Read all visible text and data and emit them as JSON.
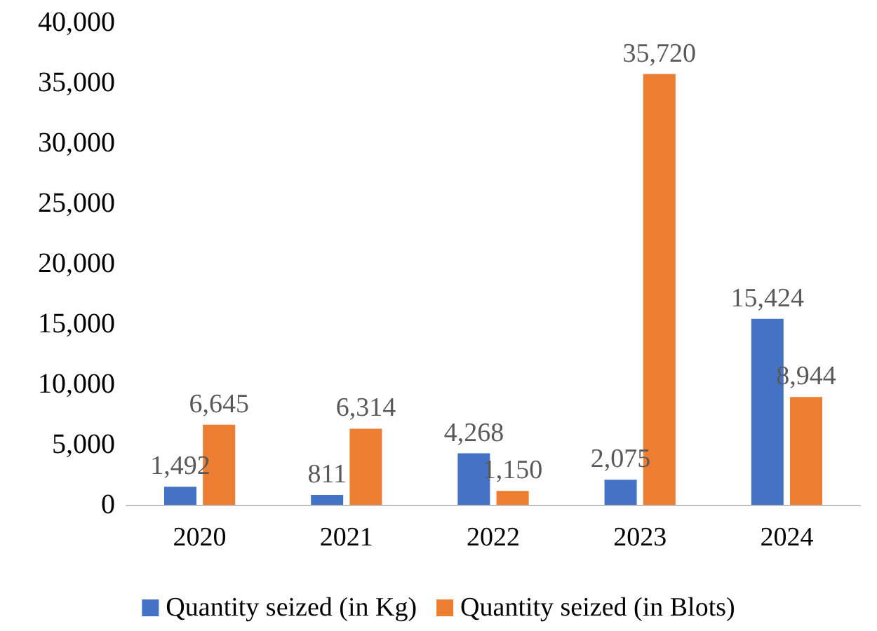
{
  "chart_data": {
    "type": "bar",
    "categories": [
      "2020",
      "2021",
      "2022",
      "2023",
      "2024"
    ],
    "series": [
      {
        "name": "Quantity seized (in Kg)",
        "color": "#4472c4",
        "values": [
          1492,
          811,
          4268,
          2075,
          15424
        ],
        "value_labels": [
          "1,492",
          "811",
          "4,268",
          "2,075",
          "15,424"
        ]
      },
      {
        "name": "Quantity seized (in Blots)",
        "color": "#ed7d31",
        "values": [
          6645,
          6314,
          1150,
          35720,
          8944
        ],
        "value_labels": [
          "6,645",
          "6,314",
          "1,150",
          "35,720",
          "8,944"
        ]
      }
    ],
    "ylim": [
      0,
      40000
    ],
    "yticks": [
      {
        "value": 0,
        "label": "0"
      },
      {
        "value": 5000,
        "label": "5,000"
      },
      {
        "value": 10000,
        "label": "10,000"
      },
      {
        "value": 15000,
        "label": "15,000"
      },
      {
        "value": 20000,
        "label": "20,000"
      },
      {
        "value": 25000,
        "label": "25,000"
      },
      {
        "value": 30000,
        "label": "30,000"
      },
      {
        "value": 35000,
        "label": "35,000"
      },
      {
        "value": 40000,
        "label": "40,000"
      }
    ],
    "grid": false,
    "legend": "bottom"
  }
}
